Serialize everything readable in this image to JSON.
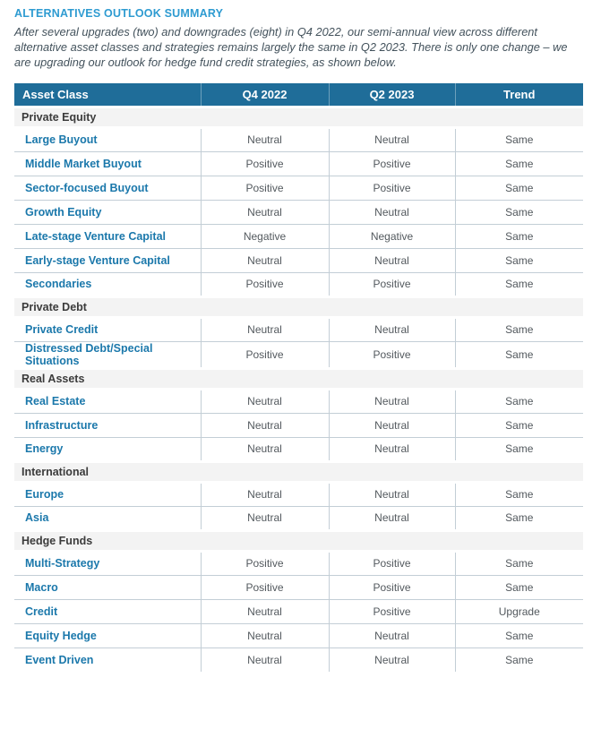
{
  "page": {
    "title": "ALTERNATIVES OUTLOOK SUMMARY",
    "intro": "After several upgrades (two) and downgrades (eight) in Q4 2022, our semi-annual view across different alternative asset classes and strategies remains largely the same in Q2 2023. There is only one change – we are upgrading our outlook for hedge fund credit strategies, as shown below."
  },
  "colors": {
    "title_blue": "#2E9BD1",
    "header_bg": "#1F6D99",
    "header_text": "#FFFFFF",
    "asset_link_blue": "#1B78AB",
    "section_bg": "#F3F3F3",
    "section_text": "#3B3B3B",
    "value_text": "#53595E",
    "border": "#C3CED6"
  },
  "table": {
    "columns": [
      "Asset Class",
      "Q4 2022",
      "Q2 2023",
      "Trend"
    ],
    "sections": [
      {
        "name": "Private Equity",
        "rows": [
          {
            "asset": "Large Buyout",
            "q4_2022": "Neutral",
            "q2_2023": "Neutral",
            "trend": "Same"
          },
          {
            "asset": "Middle Market Buyout",
            "q4_2022": "Positive",
            "q2_2023": "Positive",
            "trend": "Same"
          },
          {
            "asset": "Sector-focused Buyout",
            "q4_2022": "Positive",
            "q2_2023": "Positive",
            "trend": "Same"
          },
          {
            "asset": "Growth Equity",
            "q4_2022": "Neutral",
            "q2_2023": "Neutral",
            "trend": "Same"
          },
          {
            "asset": "Late-stage Venture Capital",
            "q4_2022": "Negative",
            "q2_2023": "Negative",
            "trend": "Same"
          },
          {
            "asset": "Early-stage Venture Capital",
            "q4_2022": "Neutral",
            "q2_2023": "Neutral",
            "trend": "Same"
          },
          {
            "asset": "Secondaries",
            "q4_2022": "Positive",
            "q2_2023": "Positive",
            "trend": "Same"
          }
        ]
      },
      {
        "name": "Private Debt",
        "rows": [
          {
            "asset": "Private Credit",
            "q4_2022": "Neutral",
            "q2_2023": "Neutral",
            "trend": "Same"
          },
          {
            "asset": "Distressed Debt/Special Situations",
            "q4_2022": "Positive",
            "q2_2023": "Positive",
            "trend": "Same"
          }
        ]
      },
      {
        "name": "Real Assets",
        "rows": [
          {
            "asset": "Real Estate",
            "q4_2022": "Neutral",
            "q2_2023": "Neutral",
            "trend": "Same"
          },
          {
            "asset": "Infrastructure",
            "q4_2022": "Neutral",
            "q2_2023": "Neutral",
            "trend": "Same"
          },
          {
            "asset": "Energy",
            "q4_2022": "Neutral",
            "q2_2023": "Neutral",
            "trend": "Same"
          }
        ]
      },
      {
        "name": "International",
        "rows": [
          {
            "asset": "Europe",
            "q4_2022": "Neutral",
            "q2_2023": "Neutral",
            "trend": "Same"
          },
          {
            "asset": "Asia",
            "q4_2022": "Neutral",
            "q2_2023": "Neutral",
            "trend": "Same"
          }
        ]
      },
      {
        "name": "Hedge Funds",
        "rows": [
          {
            "asset": "Multi-Strategy",
            "q4_2022": "Positive",
            "q2_2023": "Positive",
            "trend": "Same"
          },
          {
            "asset": "Macro",
            "q4_2022": "Positive",
            "q2_2023": "Positive",
            "trend": "Same"
          },
          {
            "asset": "Credit",
            "q4_2022": "Neutral",
            "q2_2023": "Positive",
            "trend": "Upgrade"
          },
          {
            "asset": "Equity Hedge",
            "q4_2022": "Neutral",
            "q2_2023": "Neutral",
            "trend": "Same"
          },
          {
            "asset": "Event Driven",
            "q4_2022": "Neutral",
            "q2_2023": "Neutral",
            "trend": "Same"
          }
        ]
      }
    ]
  }
}
